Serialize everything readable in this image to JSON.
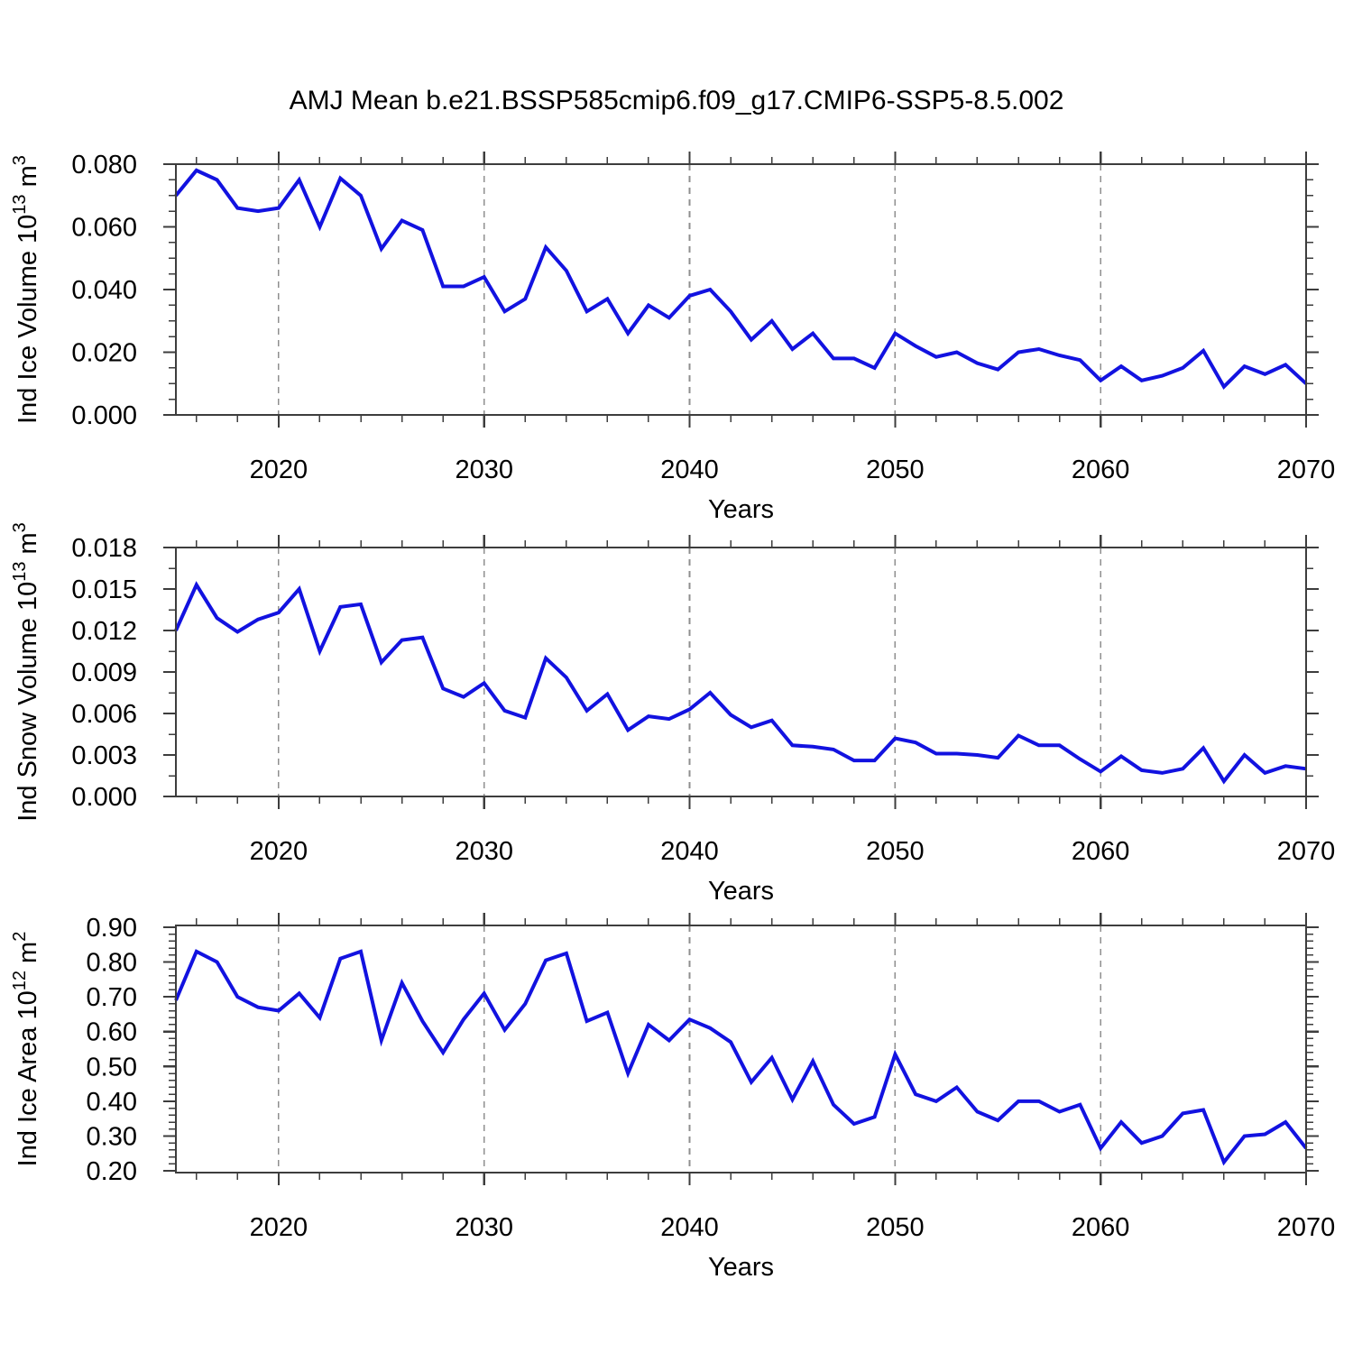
{
  "title": "AMJ Mean b.e21.BSSP585cmip6.f09_g17.CMIP6-SSP5-8.5.002",
  "colors": {
    "line": "#1212e0",
    "grid": "#8f8f8f",
    "axis": "#3d3d3d",
    "text": "#000000",
    "background": "#ffffff"
  },
  "x_axis": {
    "label": "Years",
    "start": 2015,
    "end": 2070,
    "major_ticks": [
      2020,
      2030,
      2040,
      2050,
      2060,
      2070
    ],
    "minor_step": 2
  },
  "years": [
    2015,
    2016,
    2017,
    2018,
    2019,
    2020,
    2021,
    2022,
    2023,
    2024,
    2025,
    2026,
    2027,
    2028,
    2029,
    2030,
    2031,
    2032,
    2033,
    2034,
    2035,
    2036,
    2037,
    2038,
    2039,
    2040,
    2041,
    2042,
    2043,
    2044,
    2045,
    2046,
    2047,
    2048,
    2049,
    2050,
    2051,
    2052,
    2053,
    2054,
    2055,
    2056,
    2057,
    2058,
    2059,
    2060,
    2061,
    2062,
    2063,
    2064,
    2065,
    2066,
    2067,
    2068,
    2069,
    2070
  ],
  "chart_data": [
    {
      "type": "line",
      "name": "ice-volume",
      "ylabel": {
        "base": "Ind Ice Volume",
        "scale": "10",
        "scale_exponent": "13",
        "unit": "m",
        "unit_exponent": "3"
      },
      "ylim": [
        0,
        0.08
      ],
      "y_major": [
        0.0,
        0.02,
        0.04,
        0.06,
        0.08
      ],
      "y_labels": [
        "0.000",
        "0.020",
        "0.040",
        "0.060",
        "0.080"
      ],
      "y_minor_step": 0.005,
      "legend": "none",
      "grid": "x-dashed",
      "values": [
        0.07,
        0.078,
        0.075,
        0.066,
        0.065,
        0.066,
        0.075,
        0.06,
        0.0755,
        0.07,
        0.053,
        0.062,
        0.059,
        0.041,
        0.041,
        0.044,
        0.033,
        0.037,
        0.0535,
        0.046,
        0.033,
        0.037,
        0.026,
        0.035,
        0.031,
        0.038,
        0.04,
        0.033,
        0.024,
        0.03,
        0.021,
        0.026,
        0.018,
        0.018,
        0.015,
        0.026,
        0.022,
        0.0185,
        0.02,
        0.0165,
        0.0145,
        0.02,
        0.021,
        0.019,
        0.0175,
        0.011,
        0.0155,
        0.011,
        0.0125,
        0.015,
        0.0205,
        0.009,
        0.0155,
        0.013,
        0.016,
        0.01
      ]
    },
    {
      "type": "line",
      "name": "snow-volume",
      "ylabel": {
        "base": "Ind Snow Volume",
        "scale": "10",
        "scale_exponent": "13",
        "unit": "m",
        "unit_exponent": "3"
      },
      "ylim": [
        0,
        0.018
      ],
      "y_major": [
        0.0,
        0.003,
        0.006,
        0.009,
        0.012,
        0.015,
        0.018
      ],
      "y_labels": [
        "0.000",
        "0.003",
        "0.006",
        "0.009",
        "0.012",
        "0.015",
        "0.018"
      ],
      "y_minor_step": 0.0015,
      "legend": "none",
      "grid": "x-dashed",
      "values": [
        0.012,
        0.0153,
        0.0129,
        0.0119,
        0.0128,
        0.0133,
        0.015,
        0.0105,
        0.0137,
        0.0139,
        0.0097,
        0.0113,
        0.0115,
        0.0078,
        0.0072,
        0.0082,
        0.0062,
        0.0057,
        0.01,
        0.0086,
        0.0062,
        0.0074,
        0.0048,
        0.0058,
        0.0056,
        0.0063,
        0.0075,
        0.0059,
        0.005,
        0.0055,
        0.0037,
        0.0036,
        0.0034,
        0.0026,
        0.0026,
        0.0042,
        0.0039,
        0.0031,
        0.0031,
        0.003,
        0.0028,
        0.0044,
        0.0037,
        0.0037,
        0.0027,
        0.0018,
        0.0029,
        0.0019,
        0.0017,
        0.002,
        0.0035,
        0.0011,
        0.003,
        0.0017,
        0.0022,
        0.002
      ]
    },
    {
      "type": "line",
      "name": "ice-area",
      "ylabel": {
        "base": "Ind Ice Area",
        "scale": "10",
        "scale_exponent": "12",
        "unit": "m",
        "unit_exponent": "2"
      },
      "ylim": [
        0.195,
        0.905
      ],
      "y_major": [
        0.2,
        0.3,
        0.4,
        0.5,
        0.6,
        0.7,
        0.8,
        0.9
      ],
      "y_labels": [
        "0.20",
        "0.30",
        "0.40",
        "0.50",
        "0.60",
        "0.70",
        "0.80",
        "0.90"
      ],
      "y_minor_step": 0.02,
      "legend": "none",
      "grid": "x-dashed",
      "values": [
        0.69,
        0.83,
        0.8,
        0.7,
        0.67,
        0.66,
        0.71,
        0.64,
        0.81,
        0.83,
        0.575,
        0.74,
        0.63,
        0.54,
        0.635,
        0.71,
        0.605,
        0.68,
        0.805,
        0.825,
        0.63,
        0.655,
        0.48,
        0.62,
        0.575,
        0.635,
        0.61,
        0.57,
        0.455,
        0.525,
        0.405,
        0.515,
        0.39,
        0.335,
        0.355,
        0.535,
        0.42,
        0.4,
        0.44,
        0.37,
        0.345,
        0.4,
        0.4,
        0.37,
        0.39,
        0.265,
        0.34,
        0.28,
        0.3,
        0.365,
        0.375,
        0.225,
        0.3,
        0.305,
        0.34,
        0.265
      ]
    }
  ]
}
